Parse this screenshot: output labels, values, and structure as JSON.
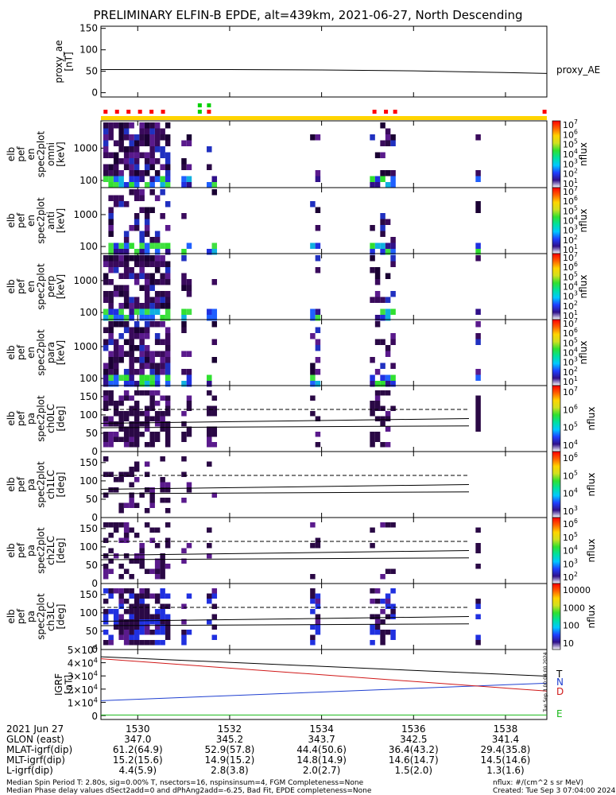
{
  "title": "PRELIMINARY ELFIN-B EPDE, alt=439km, 2021-06-27, North Descending",
  "chart_data": [
    {
      "type": "line",
      "panel": "proxy_ae",
      "ylabel_lines": [
        "proxy_ae",
        "[nT]"
      ],
      "ylim": [
        -10,
        155
      ],
      "yticks": [
        0,
        50,
        100,
        150
      ],
      "series": [
        {
          "name": "proxy_AE",
          "color": "#000000",
          "x": [
            1529.2,
            1532,
            1534,
            1536,
            1537.5,
            1538.9
          ],
          "y": [
            54,
            54,
            53,
            51,
            48,
            45
          ]
        }
      ]
    },
    {
      "type": "heatmap",
      "panel": "omni",
      "ylabel_lines": [
        "elb",
        "pef",
        "en",
        "spec2plot",
        "omni",
        "[keV]"
      ],
      "ylim_log": [
        60,
        7000
      ],
      "yticks": [
        100,
        1000
      ],
      "colorbar": {
        "label": "nflux",
        "ticks": [
          "10^7",
          "10^6",
          "10^5",
          "10^4",
          "10^3",
          "10^2",
          "10^1"
        ]
      }
    },
    {
      "type": "heatmap",
      "panel": "anti",
      "ylabel_lines": [
        "elb",
        "pef",
        "en",
        "spec2plot",
        "anti",
        "[keV]"
      ],
      "ylim_log": [
        60,
        7000
      ],
      "yticks": [
        100,
        1000
      ],
      "colorbar": {
        "label": "nflux",
        "ticks": [
          "10^7",
          "10^6",
          "10^5",
          "10^4",
          "10^3",
          "10^2",
          "10^1"
        ]
      }
    },
    {
      "type": "heatmap",
      "panel": "perp",
      "ylabel_lines": [
        "elb",
        "pef",
        "en",
        "spec2plot",
        "perp",
        "[keV]"
      ],
      "ylim_log": [
        60,
        7000
      ],
      "yticks": [
        100,
        1000
      ],
      "colorbar": {
        "label": "nflux",
        "ticks": [
          "10^7",
          "10^6",
          "10^5",
          "10^4",
          "10^3",
          "10^2",
          "10^1"
        ]
      }
    },
    {
      "type": "heatmap",
      "panel": "para",
      "ylabel_lines": [
        "elb",
        "pef",
        "en",
        "spec2plot",
        "para",
        "[keV]"
      ],
      "ylim_log": [
        60,
        7000
      ],
      "yticks": [
        100,
        1000
      ],
      "colorbar": {
        "label": "nflux",
        "ticks": [
          "10^7",
          "10^6",
          "10^5",
          "10^4",
          "10^3",
          "10^2",
          "10^1"
        ]
      }
    },
    {
      "type": "heatmap",
      "panel": "ch0LC",
      "ylabel_lines": [
        "elb",
        "pef",
        "pa",
        "spec2plot",
        "ch0LC",
        "[deg]"
      ],
      "ylim": [
        0,
        180
      ],
      "yticks": [
        0,
        50,
        100,
        150
      ],
      "colorbar": {
        "label": "nflux",
        "ticks": [
          "10^7",
          "10^6",
          "10^5",
          "10^4"
        ]
      }
    },
    {
      "type": "heatmap",
      "panel": "ch1LC",
      "ylabel_lines": [
        "elb",
        "pef",
        "pa",
        "spec2plot",
        "ch1LC",
        "[deg]"
      ],
      "ylim": [
        0,
        180
      ],
      "yticks": [
        0,
        50,
        100,
        150
      ],
      "colorbar": {
        "label": "nflux",
        "ticks": [
          "10^6",
          "10^5",
          "10^4",
          "10^3"
        ]
      }
    },
    {
      "type": "heatmap",
      "panel": "ch2LC",
      "ylabel_lines": [
        "elb",
        "pef",
        "pa",
        "spec2plot",
        "ch2LC",
        "[deg]"
      ],
      "ylim": [
        0,
        180
      ],
      "yticks": [
        0,
        50,
        100,
        150
      ],
      "colorbar": {
        "label": "nflux",
        "ticks": [
          "10^6",
          "10^5",
          "10^4",
          "10^3",
          "10^2"
        ]
      }
    },
    {
      "type": "heatmap",
      "panel": "ch3LC",
      "ylabel_lines": [
        "elb",
        "pef",
        "pa",
        "spec2plot",
        "ch3LC",
        "[deg]"
      ],
      "ylim": [
        0,
        180
      ],
      "yticks": [
        0,
        50,
        100,
        150
      ],
      "colorbar": {
        "label": "nflux",
        "ticks": [
          "10000",
          "1000",
          "100",
          "10"
        ]
      }
    },
    {
      "type": "line",
      "panel": "igrf",
      "ylabel_lines": [
        "IGRF",
        "[nT]"
      ],
      "ylim": [
        -3000,
        50000
      ],
      "yticks": [
        "0",
        "1×10^4",
        "2×10^4",
        "3×10^4",
        "4×10^4",
        "5×10^4"
      ],
      "series": [
        {
          "name": "T",
          "color": "#000000",
          "x": [
            1529.2,
            1538.9
          ],
          "y": [
            44500,
            29800
          ]
        },
        {
          "name": "N",
          "color": "#1f3fd0",
          "x": [
            1529.2,
            1538.9
          ],
          "y": [
            11200,
            24500
          ]
        },
        {
          "name": "D",
          "color": "#d01818",
          "x": [
            1529.2,
            1538.9
          ],
          "y": [
            43000,
            18500
          ]
        },
        {
          "name": "E",
          "color": "#18b818",
          "x": [
            1529.2,
            1538.9
          ],
          "y": [
            400,
            400
          ]
        }
      ]
    }
  ],
  "xaxis": {
    "range": [
      1529.2,
      1538.9
    ],
    "ticks": [
      "1530",
      "1532",
      "1534",
      "1536",
      "1538"
    ],
    "tick_values": [
      1530,
      1532,
      1534,
      1536,
      1538
    ]
  },
  "annotations": {
    "rows": [
      {
        "label": "2021 Jun 27",
        "values": [
          "1530",
          "1532",
          "1534",
          "1536",
          "1538"
        ]
      },
      {
        "label": "GLON (east)",
        "values": [
          "347.0",
          "345.2",
          "343.7",
          "342.5",
          "341.4"
        ]
      },
      {
        "label": "MLAT-igrf(dip)",
        "values": [
          "61.2(64.9)",
          "52.9(57.8)",
          "44.4(50.6)",
          "36.4(43.2)",
          "29.4(35.8)"
        ]
      },
      {
        "label": "MLT-igrf(dip)",
        "values": [
          "15.2(15.6)",
          "14.9(15.2)",
          "14.8(14.9)",
          "14.6(14.7)",
          "14.5(14.6)"
        ]
      },
      {
        "label": "L-igrf(dip)",
        "values": [
          "4.4(5.9)",
          "2.8(3.8)",
          "2.0(2.7)",
          "1.5(2.0)",
          "1.3(1.6)"
        ]
      }
    ],
    "footer_left_1": "Median Spin Period T: 2.80s, sig=0.00% T, nsectors=16, nspinsinsum=4, FGM Completeness=None",
    "footer_left_2": "Median Phase delay values dSect2add=0 and dPhAng2add=-6.25, Bad Fit, EPDE completeness=None",
    "footer_right_1": "nflux: #/(cm^2 s sr MeV)",
    "footer_right_2": "Created: Tue Sep  3 07:04:00 2024",
    "side_stamp": "Tue Sep  3 00:04:00 2024"
  },
  "colors": {
    "bar_yellow": "#ffd400",
    "flag_red": "#ff0000",
    "flag_green": "#00d000",
    "proxy_label": "proxy_AE"
  }
}
